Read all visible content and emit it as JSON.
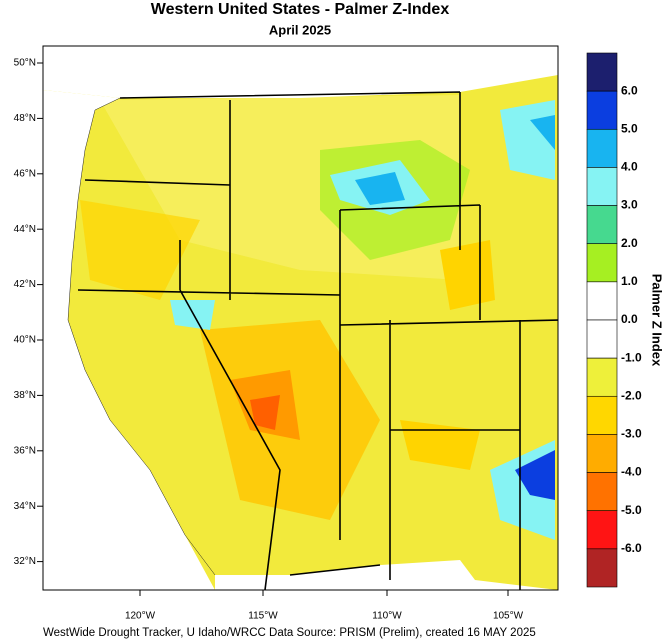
{
  "title": "Western United States - Palmer Z-Index",
  "subtitle": "April 2025",
  "latitude_labels": [
    "50°N",
    "48°N",
    "46°N",
    "44°N",
    "42°N",
    "40°N",
    "38°N",
    "36°N",
    "34°N",
    "32°N"
  ],
  "longitude_labels": [
    "120°W",
    "115°W",
    "110°W",
    "105°W"
  ],
  "legend": {
    "title": "Palmer Z Index",
    "colors": [
      "#1c1f6e",
      "#0b3ee0",
      "#18b4f0",
      "#86f3f3",
      "#46d98f",
      "#a6ef22",
      "#ffffff",
      "#ffffff",
      "#eef03a",
      "#ffd700",
      "#ffac00",
      "#ff7200",
      "#ff1414",
      "#b02424"
    ],
    "labels": [
      "6.0",
      "5.0",
      "4.0",
      "3.0",
      "2.0",
      "1.0",
      "0.0",
      "-1.0",
      "-2.0",
      "-3.0",
      "-4.0",
      "-5.0",
      "-6.0"
    ]
  },
  "footer": "WestWide Drought Tracker, U Idaho/WRCC Data Source: PRISM (Prelim), created 16 MAY 2025"
}
